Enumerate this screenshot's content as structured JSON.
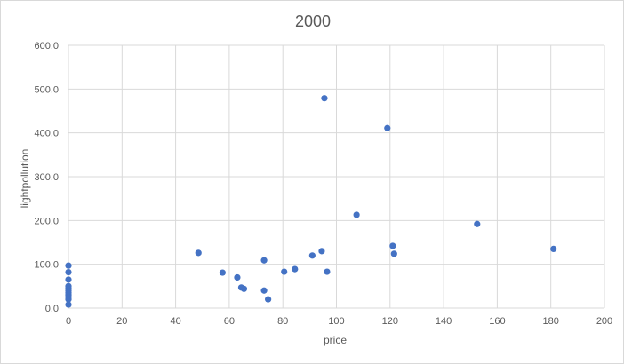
{
  "chart_data": {
    "type": "scatter",
    "title": "2000",
    "xlabel": "price",
    "ylabel": "lightpollution",
    "xlim": [
      0,
      200
    ],
    "ylim": [
      0,
      600
    ],
    "x_ticks": [
      "0",
      "20",
      "40",
      "60",
      "80",
      "100",
      "120",
      "140",
      "160",
      "180",
      "200"
    ],
    "y_ticks": [
      "0.0",
      "100.0",
      "200.0",
      "300.0",
      "400.0",
      "500.0",
      "600.0"
    ],
    "grid": true,
    "legend": "none",
    "marker_color": "#4472c4",
    "points": [
      {
        "x": 0,
        "y": 97
      },
      {
        "x": 0,
        "y": 82
      },
      {
        "x": 0,
        "y": 65
      },
      {
        "x": 0,
        "y": 50
      },
      {
        "x": 0,
        "y": 45
      },
      {
        "x": 0,
        "y": 40
      },
      {
        "x": 0,
        "y": 35
      },
      {
        "x": 0,
        "y": 30
      },
      {
        "x": 0,
        "y": 25
      },
      {
        "x": 0,
        "y": 20
      },
      {
        "x": 0,
        "y": 8
      },
      {
        "x": 48.5,
        "y": 126
      },
      {
        "x": 57.5,
        "y": 81
      },
      {
        "x": 63,
        "y": 70
      },
      {
        "x": 64.5,
        "y": 47
      },
      {
        "x": 65.5,
        "y": 44
      },
      {
        "x": 73,
        "y": 109
      },
      {
        "x": 73,
        "y": 40
      },
      {
        "x": 74.5,
        "y": 20
      },
      {
        "x": 80.5,
        "y": 83
      },
      {
        "x": 84.5,
        "y": 89
      },
      {
        "x": 91,
        "y": 120
      },
      {
        "x": 94.5,
        "y": 130
      },
      {
        "x": 95.5,
        "y": 479
      },
      {
        "x": 96.5,
        "y": 83
      },
      {
        "x": 107.5,
        "y": 213
      },
      {
        "x": 119,
        "y": 411
      },
      {
        "x": 121,
        "y": 142
      },
      {
        "x": 121.5,
        "y": 124
      },
      {
        "x": 152.5,
        "y": 192
      },
      {
        "x": 181,
        "y": 135
      }
    ]
  }
}
